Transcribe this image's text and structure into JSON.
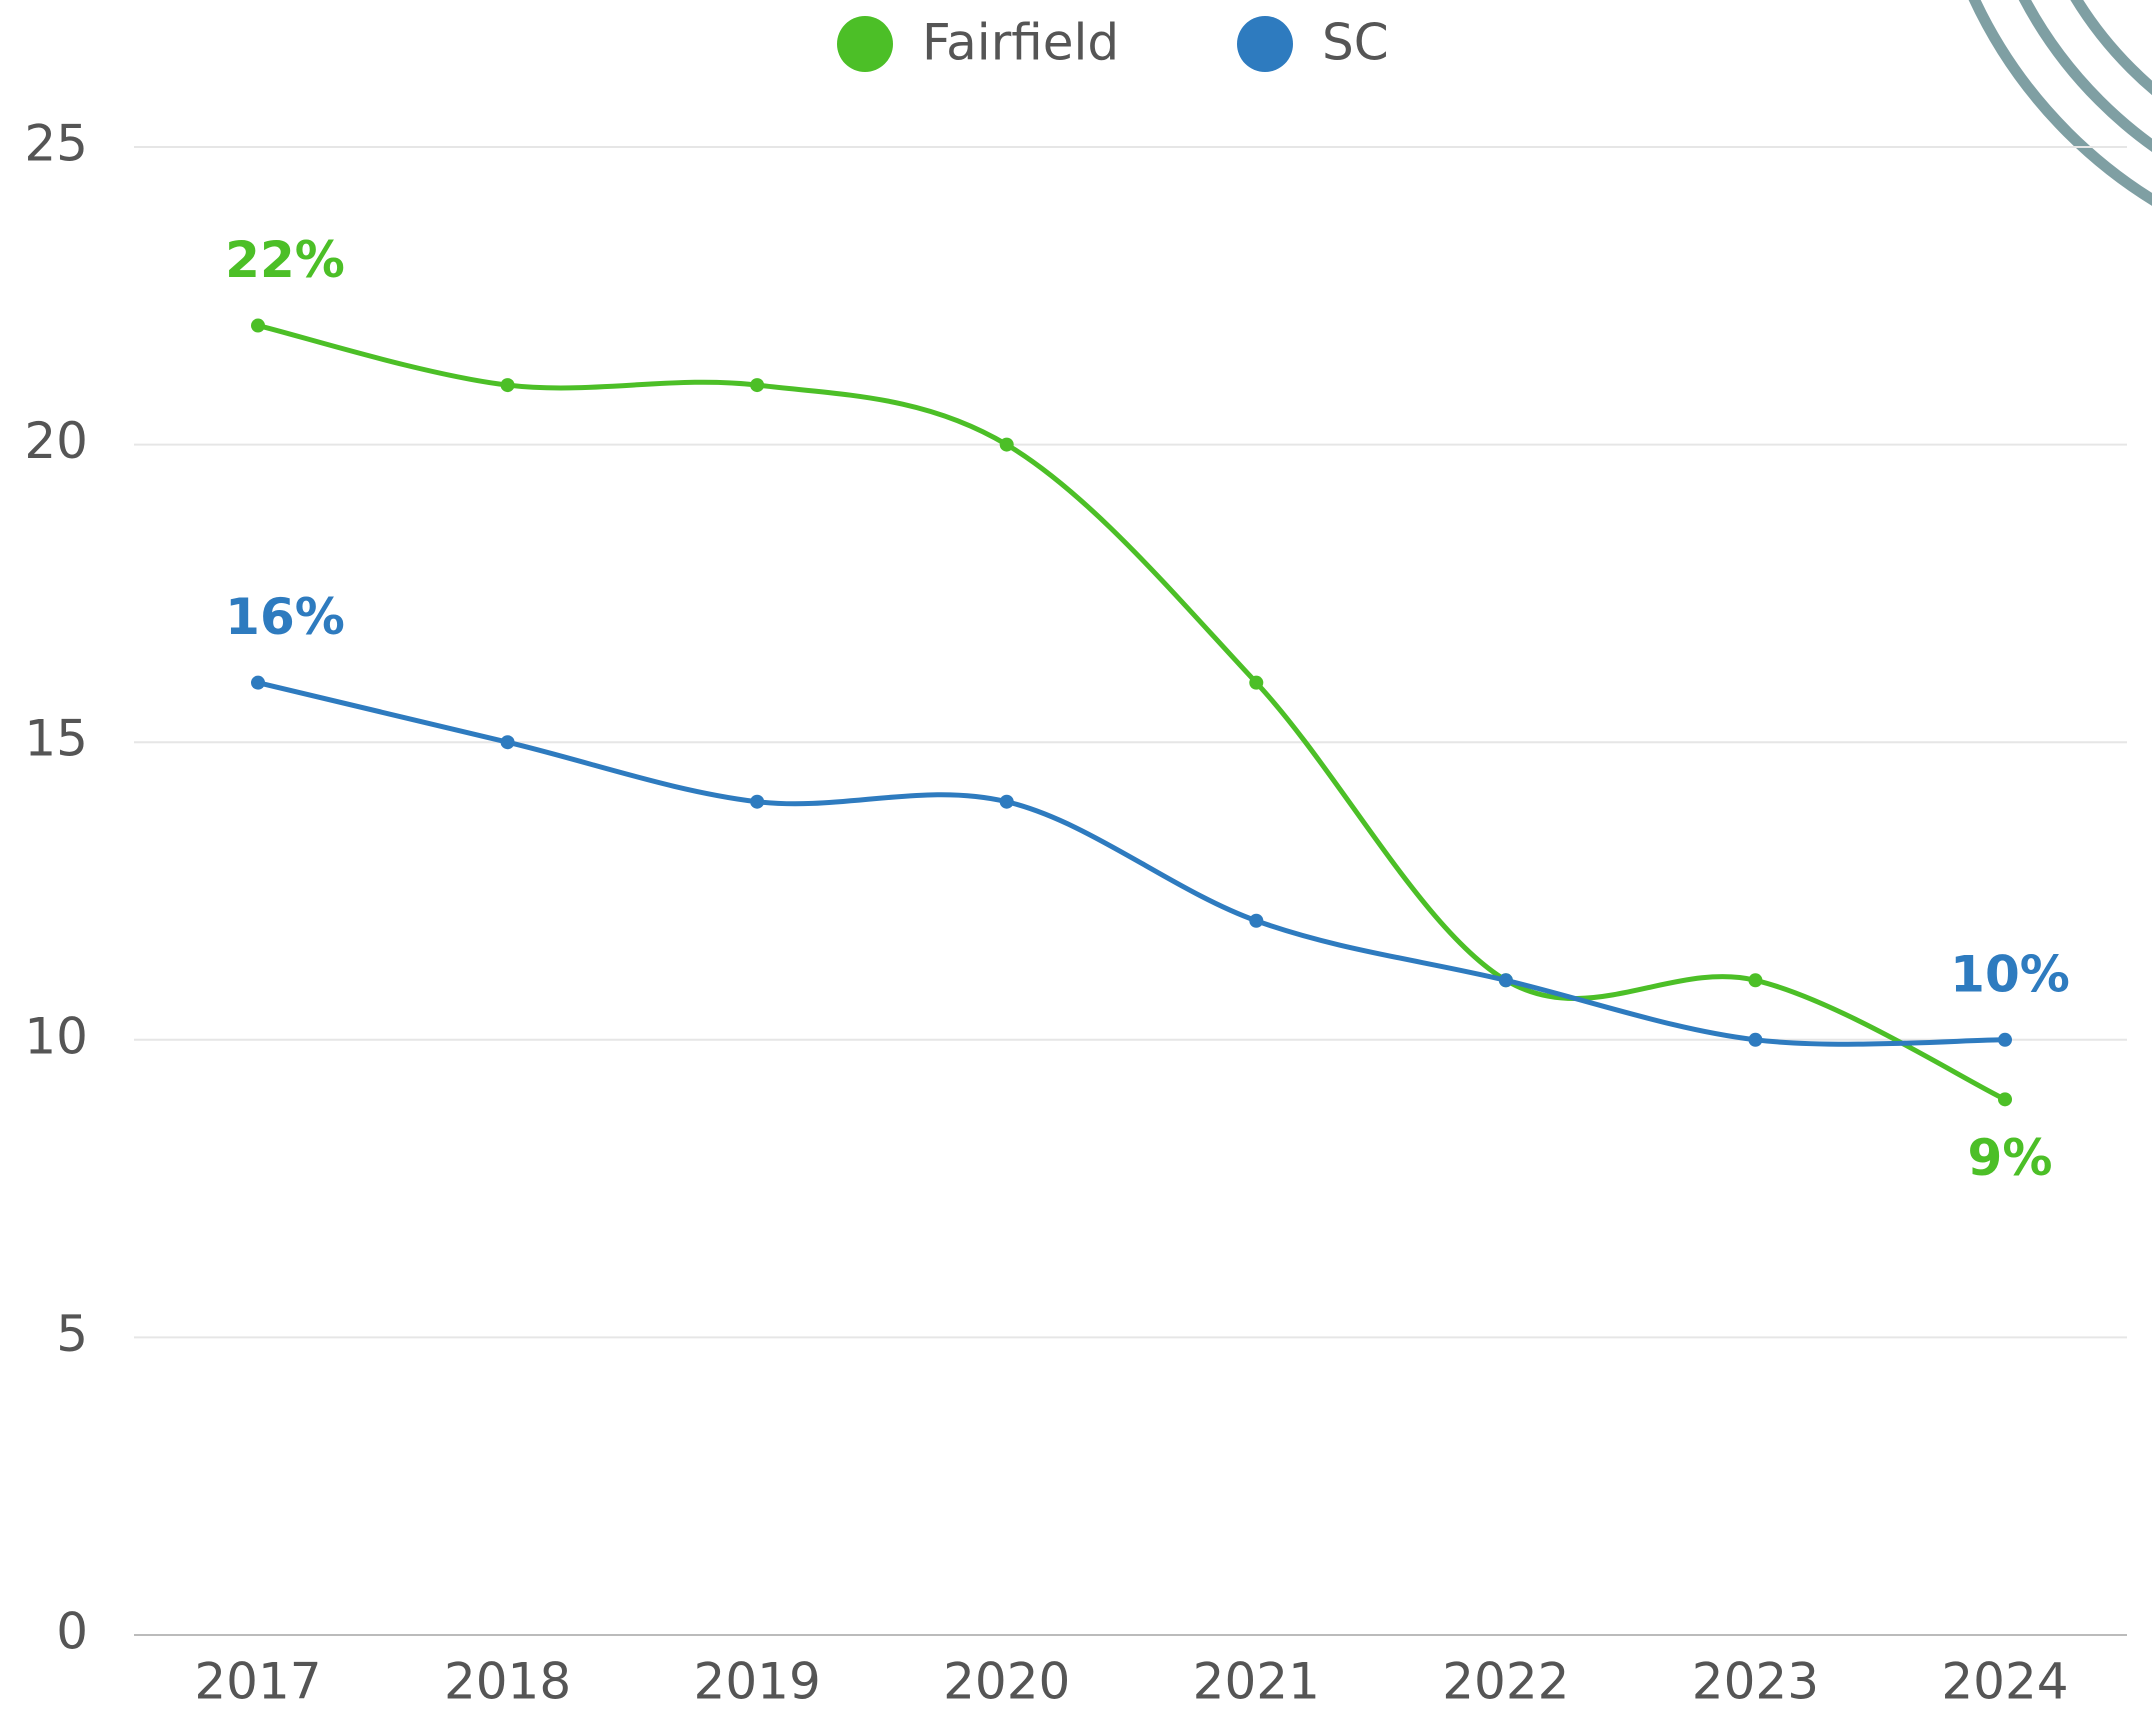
{
  "chart_data": {
    "type": "line",
    "categories": [
      "2017",
      "2018",
      "2019",
      "2020",
      "2021",
      "2022",
      "2023",
      "2024"
    ],
    "series": [
      {
        "name": "Fairfield",
        "color": "#4cbf27",
        "values": [
          22,
          21,
          21,
          20,
          16,
          11,
          11,
          9
        ],
        "value_labels": [
          "22%",
          null,
          null,
          null,
          null,
          null,
          null,
          "9%"
        ]
      },
      {
        "name": "SC",
        "color": "#2e7bbf",
        "values": [
          16,
          15,
          14,
          14,
          12,
          11,
          10,
          10
        ],
        "value_labels": [
          "16%",
          null,
          null,
          null,
          null,
          null,
          null,
          "10%"
        ]
      }
    ],
    "ylim": [
      0,
      25
    ],
    "yticks": [
      0,
      5,
      10,
      15,
      20,
      25
    ],
    "grid": true,
    "legend": "top",
    "smooth": true
  }
}
